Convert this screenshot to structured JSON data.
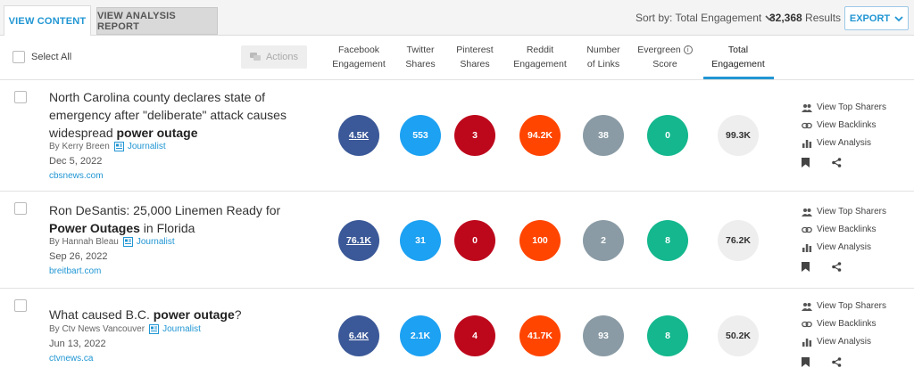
{
  "tabs": {
    "view_content": "VIEW CONTENT",
    "view_analysis_report": "VIEW ANALYSIS REPORT"
  },
  "toolbar": {
    "sort_label": "Sort by: Total Engagement",
    "result_count": "32,368",
    "results_label": "Results",
    "export_label": "EXPORT"
  },
  "table_header": {
    "select_all": "Select All",
    "actions": "Actions",
    "columns": {
      "facebook": [
        "Facebook",
        "Engagement"
      ],
      "twitter": [
        "Twitter",
        "Shares"
      ],
      "pinterest": [
        "Pinterest",
        "Shares"
      ],
      "reddit": [
        "Reddit",
        "Engagement"
      ],
      "links": [
        "Number",
        "of Links"
      ],
      "evergreen": [
        "Evergreen",
        "Score"
      ],
      "total": [
        "Total",
        "Engagement"
      ]
    },
    "evergreen_info": "i"
  },
  "row_actions": {
    "top_sharers": "View Top Sharers",
    "backlinks": "View Backlinks",
    "analysis": "View Analysis"
  },
  "rows": [
    {
      "title_pre": "North Carolina county declares state of emergency after \"deliberate\" attack causes widespread ",
      "title_bold": "power outage",
      "title_post": "",
      "author": "By Kerry Breen",
      "badge": "Journalist",
      "date": "Dec 5, 2022",
      "domain": "cbsnews.com",
      "facebook": "4.5K",
      "twitter": "553",
      "pinterest": "3",
      "reddit": "94.2K",
      "links": "38",
      "evergreen": "0",
      "total": "99.3K"
    },
    {
      "title_pre": "Ron DeSantis: 25,000 Linemen Ready for ",
      "title_bold": "Power Outages",
      "title_post": " in Florida",
      "author": "By Hannah Bleau",
      "badge": "Journalist",
      "date": "Sep 26, 2022",
      "domain": "breitbart.com",
      "facebook": "76.1K",
      "twitter": "31",
      "pinterest": "0",
      "reddit": "100",
      "links": "2",
      "evergreen": "8",
      "total": "76.2K"
    },
    {
      "title_pre": "What caused B.C. ",
      "title_bold": "power outage",
      "title_post": "?",
      "author": "By Ctv News Vancouver",
      "badge": "Journalist",
      "date": "Jun 13, 2022",
      "domain": "ctvnews.ca",
      "facebook": "6.4K",
      "twitter": "2.1K",
      "pinterest": "4",
      "reddit": "41.7K",
      "links": "93",
      "evergreen": "8",
      "total": "50.2K"
    }
  ],
  "colors": {
    "accent": "#2196d3",
    "facebook": "#3b5998",
    "twitter": "#1da1f2",
    "pinterest": "#bd081c",
    "reddit": "#ff4500",
    "links": "#8a9ba5",
    "evergreen": "#14b78e"
  },
  "icons": {
    "people": "people-icon",
    "link": "link-icon",
    "chart": "bar-chart-icon",
    "bookmark": "bookmark-icon",
    "share": "share-icon",
    "chevron": "chevron-down-icon",
    "actions": "chat-bubbles-icon",
    "badge": "newspaper-icon"
  }
}
